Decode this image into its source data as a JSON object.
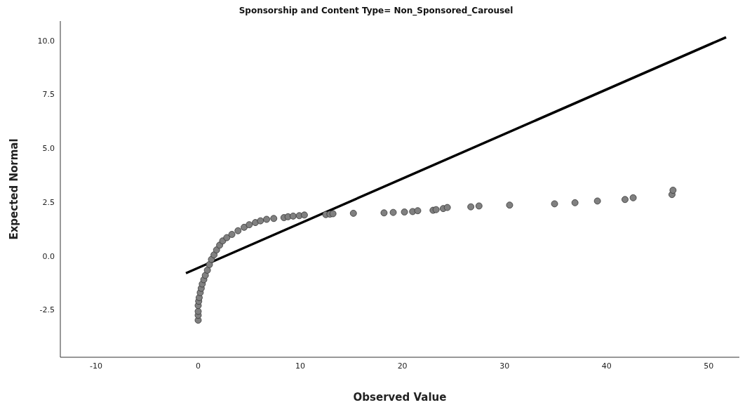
{
  "chart_data": {
    "type": "scatter",
    "title": "Sponsorship and Content Type= Non_Sponsored_Carousel",
    "xlabel": "Observed Value",
    "ylabel": "Expected Normal",
    "xlim": [
      -13.5,
      53
    ],
    "xticks": [
      -10,
      0,
      10,
      20,
      30,
      40,
      50
    ],
    "ylim": [
      -4.7,
      10.9
    ],
    "yticks": [
      {
        "value": -2.5,
        "label": "-2.5"
      },
      {
        "value": 0,
        "label": "0.0"
      },
      {
        "value": 2.5,
        "label": "2.5"
      },
      {
        "value": 5,
        "label": "5.0"
      },
      {
        "value": 7.5,
        "label": "7.5"
      },
      {
        "value": 10,
        "label": "10.0"
      }
    ],
    "grid": false,
    "legend": false,
    "marker": "circle",
    "series": [
      {
        "type": "line",
        "color": "#000000",
        "marker": "none",
        "x": [
          -1.2,
          51.7
        ],
        "values": [
          -0.8,
          10.15
        ]
      },
      {
        "color": "#808080",
        "x": [
          0,
          0,
          0,
          0,
          0.05,
          0.1,
          0.2,
          0.3,
          0.4,
          0.55,
          0.7,
          0.9,
          1.1,
          1.3,
          1.55,
          1.8,
          2.1,
          2.4,
          2.8,
          3.3,
          3.9,
          4.5,
          5.0,
          5.6,
          6.1,
          6.7,
          7.4,
          8.4,
          8.8,
          9.3,
          9.9,
          10.4,
          12.5,
          12.9,
          13.2,
          15.2,
          18.2,
          19.1,
          20.2,
          21,
          21.5,
          23,
          23.3,
          24,
          24.4,
          26.7,
          27.5,
          30.5,
          34.9,
          36.9,
          39.1,
          41.8,
          42.6,
          46.4,
          46.5
        ],
        "values": [
          -2.98,
          -2.75,
          -2.57,
          -2.3,
          -2.1,
          -1.93,
          -1.7,
          -1.5,
          -1.3,
          -1.1,
          -0.9,
          -0.66,
          -0.4,
          -0.16,
          0.05,
          0.28,
          0.5,
          0.7,
          0.85,
          1.0,
          1.17,
          1.33,
          1.45,
          1.55,
          1.63,
          1.7,
          1.74,
          1.78,
          1.82,
          1.85,
          1.87,
          1.9,
          1.92,
          1.94,
          1.96,
          1.98,
          2.0,
          2.02,
          2.04,
          2.06,
          2.1,
          2.12,
          2.15,
          2.2,
          2.25,
          2.28,
          2.32,
          2.36,
          2.42,
          2.47,
          2.55,
          2.62,
          2.7,
          2.85,
          3.05
        ]
      }
    ]
  }
}
